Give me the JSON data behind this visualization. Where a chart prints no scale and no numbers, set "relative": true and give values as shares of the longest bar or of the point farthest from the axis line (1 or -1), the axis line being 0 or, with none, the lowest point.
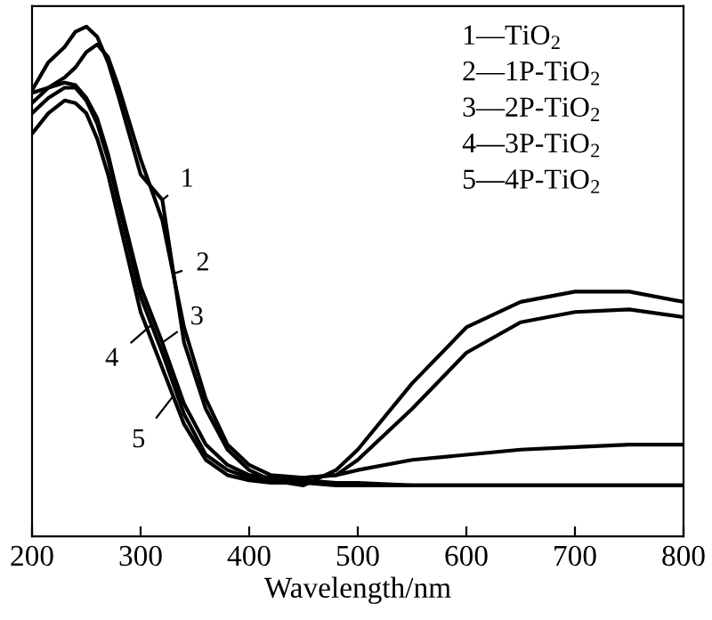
{
  "chart_data": {
    "type": "line",
    "xlabel": "Wavelength/nm",
    "relative": true,
    "xlim": [
      200,
      800
    ],
    "xticks": [
      200,
      300,
      400,
      500,
      600,
      700,
      800
    ],
    "grid": false,
    "legend": false,
    "marker": "none",
    "line_style": "solid",
    "x": [
      200,
      215,
      230,
      240,
      250,
      260,
      270,
      280,
      300,
      320,
      340,
      360,
      380,
      400,
      420,
      450,
      480,
      500,
      550,
      600,
      650,
      700,
      750,
      800
    ],
    "series": [
      {
        "color": "#000000",
        "values": [
          0.875,
          0.93,
          0.96,
          0.99,
          1.0,
          0.98,
          0.93,
          0.86,
          0.71,
          0.66,
          0.38,
          0.25,
          0.17,
          0.13,
          0.11,
          0.1,
          0.13,
          0.17,
          0.3,
          0.41,
          0.46,
          0.48,
          0.48,
          0.46
        ]
      },
      {
        "color": "#000000",
        "values": [
          0.85,
          0.88,
          0.9,
          0.92,
          0.95,
          0.965,
          0.94,
          0.88,
          0.74,
          0.62,
          0.41,
          0.27,
          0.18,
          0.14,
          0.12,
          0.115,
          0.12,
          0.15,
          0.25,
          0.36,
          0.42,
          0.44,
          0.445,
          0.43
        ]
      },
      {
        "color": "#000000",
        "values": [
          0.87,
          0.88,
          0.89,
          0.885,
          0.86,
          0.82,
          0.75,
          0.66,
          0.49,
          0.38,
          0.26,
          0.18,
          0.14,
          0.12,
          0.115,
          0.115,
          0.12,
          0.13,
          0.15,
          0.16,
          0.17,
          0.175,
          0.18,
          0.18
        ]
      },
      {
        "color": "#000000",
        "values": [
          0.83,
          0.86,
          0.88,
          0.88,
          0.855,
          0.81,
          0.74,
          0.65,
          0.47,
          0.36,
          0.24,
          0.16,
          0.13,
          0.115,
          0.11,
          0.11,
          0.105,
          0.105,
          0.1,
          0.1,
          0.1,
          0.1,
          0.1,
          0.1
        ]
      },
      {
        "color": "#000000",
        "values": [
          0.79,
          0.83,
          0.855,
          0.85,
          0.83,
          0.78,
          0.71,
          0.62,
          0.44,
          0.33,
          0.22,
          0.15,
          0.12,
          0.11,
          0.105,
          0.105,
          0.1,
          0.1,
          0.1,
          0.1,
          0.1,
          0.1,
          0.1,
          0.1
        ]
      }
    ],
    "annotations": [
      {
        "text": "1",
        "x": 320,
        "y": 0.66
      },
      {
        "text": "2",
        "x": 330,
        "y": 0.515
      },
      {
        "text": "3",
        "x": 320,
        "y": 0.38
      },
      {
        "text": "4",
        "x": 310,
        "y": 0.415
      },
      {
        "text": "5",
        "x": 330,
        "y": 0.275
      },
      "1—TiO$_{2}$",
      "2—1P-TiO$_{2}$",
      "3—2P-TiO$_{2}$",
      "4—3P-TiO$_{2}$",
      "5—4P-TiO$_{2}$"
    ]
  }
}
